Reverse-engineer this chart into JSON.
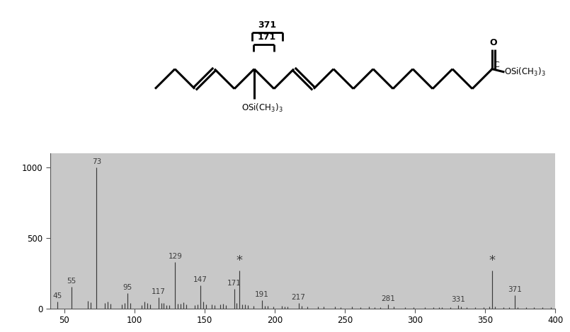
{
  "chart_bg": "#c8c8c8",
  "white_bg": "#ffffff",
  "spectrum_bg": "#c8c8c8",
  "peaks": [
    {
      "mz": 45,
      "intensity": 50,
      "label": "45"
    },
    {
      "mz": 55,
      "intensity": 155,
      "label": "55"
    },
    {
      "mz": 67,
      "intensity": 55,
      "label": ""
    },
    {
      "mz": 69,
      "intensity": 45,
      "label": ""
    },
    {
      "mz": 73,
      "intensity": 1000,
      "label": "73"
    },
    {
      "mz": 79,
      "intensity": 40,
      "label": ""
    },
    {
      "mz": 81,
      "intensity": 50,
      "label": ""
    },
    {
      "mz": 83,
      "intensity": 35,
      "label": ""
    },
    {
      "mz": 91,
      "intensity": 30,
      "label": ""
    },
    {
      "mz": 93,
      "intensity": 40,
      "label": ""
    },
    {
      "mz": 95,
      "intensity": 110,
      "label": "95"
    },
    {
      "mz": 97,
      "intensity": 40,
      "label": ""
    },
    {
      "mz": 105,
      "intensity": 25,
      "label": ""
    },
    {
      "mz": 107,
      "intensity": 50,
      "label": ""
    },
    {
      "mz": 109,
      "intensity": 40,
      "label": ""
    },
    {
      "mz": 111,
      "intensity": 30,
      "label": ""
    },
    {
      "mz": 117,
      "intensity": 80,
      "label": "117"
    },
    {
      "mz": 119,
      "intensity": 40,
      "label": ""
    },
    {
      "mz": 121,
      "intensity": 40,
      "label": ""
    },
    {
      "mz": 123,
      "intensity": 25,
      "label": ""
    },
    {
      "mz": 125,
      "intensity": 25,
      "label": ""
    },
    {
      "mz": 129,
      "intensity": 330,
      "label": "129"
    },
    {
      "mz": 131,
      "intensity": 35,
      "label": ""
    },
    {
      "mz": 133,
      "intensity": 35,
      "label": ""
    },
    {
      "mz": 135,
      "intensity": 45,
      "label": ""
    },
    {
      "mz": 137,
      "intensity": 30,
      "label": ""
    },
    {
      "mz": 143,
      "intensity": 25,
      "label": ""
    },
    {
      "mz": 145,
      "intensity": 30,
      "label": ""
    },
    {
      "mz": 147,
      "intensity": 165,
      "label": "147"
    },
    {
      "mz": 149,
      "intensity": 50,
      "label": ""
    },
    {
      "mz": 151,
      "intensity": 30,
      "label": ""
    },
    {
      "mz": 155,
      "intensity": 30,
      "label": ""
    },
    {
      "mz": 157,
      "intensity": 25,
      "label": ""
    },
    {
      "mz": 161,
      "intensity": 30,
      "label": ""
    },
    {
      "mz": 163,
      "intensity": 35,
      "label": ""
    },
    {
      "mz": 165,
      "intensity": 25,
      "label": ""
    },
    {
      "mz": 171,
      "intensity": 140,
      "label": "171"
    },
    {
      "mz": 173,
      "intensity": 40,
      "label": ""
    },
    {
      "mz": 175,
      "intensity": 270,
      "label": "*",
      "star": true
    },
    {
      "mz": 177,
      "intensity": 30,
      "label": ""
    },
    {
      "mz": 179,
      "intensity": 30,
      "label": ""
    },
    {
      "mz": 181,
      "intensity": 25,
      "label": ""
    },
    {
      "mz": 185,
      "intensity": 20,
      "label": ""
    },
    {
      "mz": 191,
      "intensity": 60,
      "label": "191"
    },
    {
      "mz": 193,
      "intensity": 20,
      "label": ""
    },
    {
      "mz": 195,
      "intensity": 20,
      "label": ""
    },
    {
      "mz": 199,
      "intensity": 15,
      "label": ""
    },
    {
      "mz": 205,
      "intensity": 18,
      "label": ""
    },
    {
      "mz": 207,
      "intensity": 15,
      "label": ""
    },
    {
      "mz": 209,
      "intensity": 15,
      "label": ""
    },
    {
      "mz": 217,
      "intensity": 40,
      "label": "217"
    },
    {
      "mz": 219,
      "intensity": 20,
      "label": ""
    },
    {
      "mz": 223,
      "intensity": 15,
      "label": ""
    },
    {
      "mz": 231,
      "intensity": 15,
      "label": ""
    },
    {
      "mz": 235,
      "intensity": 12,
      "label": ""
    },
    {
      "mz": 243,
      "intensity": 12,
      "label": ""
    },
    {
      "mz": 247,
      "intensity": 10,
      "label": ""
    },
    {
      "mz": 255,
      "intensity": 15,
      "label": ""
    },
    {
      "mz": 261,
      "intensity": 10,
      "label": ""
    },
    {
      "mz": 267,
      "intensity": 12,
      "label": ""
    },
    {
      "mz": 271,
      "intensity": 10,
      "label": ""
    },
    {
      "mz": 275,
      "intensity": 10,
      "label": ""
    },
    {
      "mz": 281,
      "intensity": 30,
      "label": "281"
    },
    {
      "mz": 285,
      "intensity": 12,
      "label": ""
    },
    {
      "mz": 293,
      "intensity": 10,
      "label": ""
    },
    {
      "mz": 299,
      "intensity": 10,
      "label": ""
    },
    {
      "mz": 307,
      "intensity": 10,
      "label": ""
    },
    {
      "mz": 313,
      "intensity": 10,
      "label": ""
    },
    {
      "mz": 317,
      "intensity": 10,
      "label": ""
    },
    {
      "mz": 319,
      "intensity": 10,
      "label": ""
    },
    {
      "mz": 325,
      "intensity": 10,
      "label": ""
    },
    {
      "mz": 331,
      "intensity": 25,
      "label": "331"
    },
    {
      "mz": 333,
      "intensity": 12,
      "label": ""
    },
    {
      "mz": 337,
      "intensity": 10,
      "label": ""
    },
    {
      "mz": 343,
      "intensity": 10,
      "label": ""
    },
    {
      "mz": 349,
      "intensity": 10,
      "label": ""
    },
    {
      "mz": 353,
      "intensity": 15,
      "label": ""
    },
    {
      "mz": 355,
      "intensity": 270,
      "label": "*",
      "star": true
    },
    {
      "mz": 357,
      "intensity": 15,
      "label": ""
    },
    {
      "mz": 363,
      "intensity": 10,
      "label": ""
    },
    {
      "mz": 367,
      "intensity": 10,
      "label": ""
    },
    {
      "mz": 371,
      "intensity": 95,
      "label": "371"
    },
    {
      "mz": 373,
      "intensity": 10,
      "label": ""
    },
    {
      "mz": 379,
      "intensity": 8,
      "label": ""
    },
    {
      "mz": 385,
      "intensity": 8,
      "label": ""
    },
    {
      "mz": 391,
      "intensity": 8,
      "label": ""
    },
    {
      "mz": 397,
      "intensity": 8,
      "label": ""
    }
  ],
  "xmin": 40,
  "xmax": 400,
  "ymin": 0,
  "ymax": 1100,
  "yticks": [
    0,
    500,
    1000
  ],
  "xticks": [
    50,
    100,
    150,
    200,
    250,
    300,
    350,
    400
  ],
  "peak_color": "#3a3a3a",
  "label_fontsize": 7.5,
  "star_fontsize": 13,
  "tick_fontsize": 8.5,
  "lw_chain": 2.2,
  "struct_col": "#000000",
  "struct_lw": 2.2
}
